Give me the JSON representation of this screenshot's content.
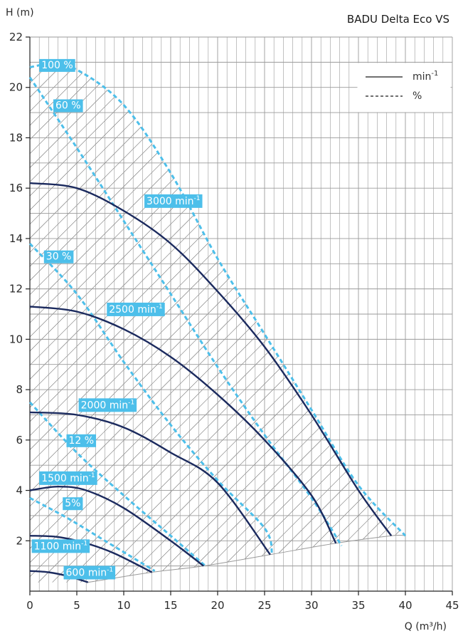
{
  "chart_data": {
    "type": "line",
    "title": "BADU Delta Eco VS",
    "xlabel": "Q (m³/h)",
    "ylabel": "H (m)",
    "xlim": [
      0,
      45
    ],
    "ylim": [
      0,
      22
    ],
    "x_ticks": [
      "0",
      "5",
      "10",
      "15",
      "20",
      "25",
      "30",
      "35",
      "40",
      "45"
    ],
    "y_ticks": [
      "2",
      "4",
      "6",
      "8",
      "10",
      "12",
      "14",
      "16",
      "18",
      "20",
      "22"
    ],
    "grid": true,
    "legend": {
      "placement": "top-right",
      "entries": [
        {
          "style": "solid",
          "unit": "min",
          "sup": "-1"
        },
        {
          "style": "dashed",
          "unit": "%",
          "sup": ""
        }
      ]
    },
    "colors": {
      "speed": "#1b2a5e",
      "efficiency": "#4dbfea",
      "grid": "#9a9a9a",
      "hatch": "#444444",
      "label_bg": "#4dbfea"
    },
    "speed_series": [
      {
        "label": "3000 min",
        "sup": "-1",
        "label_at": [
          12.2,
          15.5
        ],
        "points": [
          [
            0,
            16.2
          ],
          [
            5,
            16.0
          ],
          [
            10,
            15.1
          ],
          [
            15,
            13.8
          ],
          [
            20,
            11.9
          ],
          [
            25,
            9.7
          ],
          [
            30,
            7.0
          ],
          [
            35,
            4.0
          ],
          [
            38.5,
            2.2
          ]
        ]
      },
      {
        "label": "2500 min",
        "sup": "-1",
        "label_at": [
          8.2,
          11.2
        ],
        "points": [
          [
            0,
            11.3
          ],
          [
            5,
            11.1
          ],
          [
            10,
            10.4
          ],
          [
            15,
            9.3
          ],
          [
            20,
            7.8
          ],
          [
            25,
            6.0
          ],
          [
            30,
            3.8
          ],
          [
            32.6,
            1.9
          ]
        ]
      },
      {
        "label": "2000 min",
        "sup": "-1",
        "label_at": [
          5.2,
          7.4
        ],
        "points": [
          [
            0,
            7.1
          ],
          [
            5,
            7.0
          ],
          [
            10,
            6.5
          ],
          [
            15,
            5.5
          ],
          [
            20,
            4.3
          ],
          [
            25.6,
            1.45
          ]
        ]
      },
      {
        "label": "1500 min",
        "sup": "-1",
        "label_at": [
          1.0,
          4.5
        ],
        "points": [
          [
            0,
            4.0
          ],
          [
            3,
            4.15
          ],
          [
            6,
            4.0
          ],
          [
            10,
            3.3
          ],
          [
            15,
            2.0
          ],
          [
            18.5,
            1.0
          ]
        ]
      },
      {
        "label": "1100 min",
        "sup": "-1",
        "label_at": [
          0.2,
          1.8
        ],
        "points": [
          [
            0,
            2.2
          ],
          [
            3,
            2.15
          ],
          [
            6,
            1.9
          ],
          [
            9,
            1.5
          ],
          [
            13,
            0.75
          ]
        ]
      },
      {
        "label": "600 min",
        "sup": "-1",
        "label_at": [
          3.6,
          0.75
        ],
        "points": [
          [
            0,
            0.8
          ],
          [
            2,
            0.75
          ],
          [
            4,
            0.6
          ],
          [
            6.2,
            0.35
          ]
        ]
      }
    ],
    "efficiency_series": [
      {
        "label": "100 %",
        "label_at": [
          1.0,
          20.9
        ],
        "points": [
          [
            0,
            20.8
          ],
          [
            2,
            20.9
          ],
          [
            5,
            20.7
          ],
          [
            10,
            19.3
          ],
          [
            15,
            16.6
          ],
          [
            20,
            13.2
          ],
          [
            25,
            10.2
          ],
          [
            30,
            7.2
          ],
          [
            35,
            4.2
          ],
          [
            40,
            2.2
          ]
        ]
      },
      {
        "label": "60 %",
        "label_at": [
          2.5,
          19.3
        ],
        "points": [
          [
            0,
            20.4
          ],
          [
            5,
            17.6
          ],
          [
            10,
            14.7
          ],
          [
            15,
            11.8
          ],
          [
            20,
            8.9
          ],
          [
            25,
            6.2
          ],
          [
            30,
            3.7
          ],
          [
            33.2,
            1.8
          ]
        ]
      },
      {
        "label": "30 %",
        "label_at": [
          1.5,
          13.3
        ],
        "points": [
          [
            0,
            13.8
          ],
          [
            5,
            11.8
          ],
          [
            10,
            9.1
          ],
          [
            15,
            6.6
          ],
          [
            20,
            4.4
          ],
          [
            25,
            2.5
          ],
          [
            25.8,
            1.45
          ]
        ]
      },
      {
        "label": "12 %",
        "label_at": [
          3.9,
          6.0
        ],
        "points": [
          [
            0,
            7.5
          ],
          [
            5,
            5.5
          ],
          [
            10,
            3.8
          ],
          [
            15,
            2.2
          ],
          [
            18.7,
            1.0
          ]
        ]
      },
      {
        "label": "5%",
        "label_at": [
          3.5,
          3.5
        ],
        "points": [
          [
            0,
            3.7
          ],
          [
            4,
            2.9
          ],
          [
            8,
            2.0
          ],
          [
            13.3,
            0.8
          ]
        ]
      }
    ],
    "min_flow_line": [
      [
        6.2,
        0.35
      ],
      [
        13.0,
        0.75
      ],
      [
        18.5,
        1.0
      ],
      [
        25.6,
        1.45
      ],
      [
        32.6,
        1.9
      ],
      [
        38.5,
        2.2
      ],
      [
        40,
        2.2
      ]
    ]
  }
}
